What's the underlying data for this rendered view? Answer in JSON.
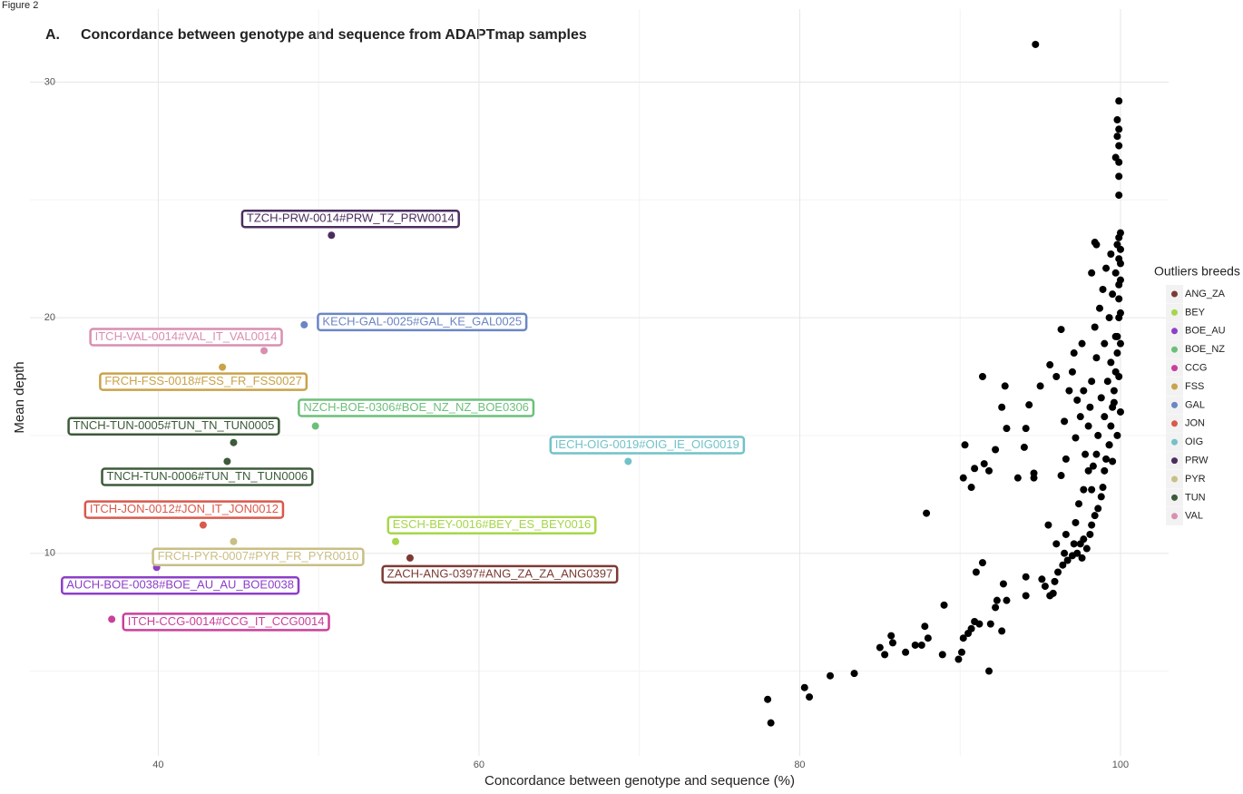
{
  "figure_label": "Figure 2",
  "chart_data": {
    "type": "scatter",
    "panel": "A.",
    "title": "Concordance between genotype and sequence from ADAPTmap samples",
    "xlabel": "Concordance between genotype and sequence (%)",
    "ylabel": "Mean depth",
    "legend_title": "Outliers breeds",
    "legend": "right",
    "grid": true,
    "xlim": [
      32,
      103
    ],
    "ylim": [
      1.4,
      33.1
    ],
    "xticks": [
      40,
      60,
      80,
      100
    ],
    "yticks": [
      10,
      20,
      30
    ],
    "minor_xticks": [
      50,
      70,
      90
    ],
    "minor_yticks": [
      5,
      15,
      25
    ],
    "color": "#000000",
    "x": [
      94.7,
      99.9,
      99.8,
      99.9,
      99.9,
      99.8,
      99.7,
      99.9,
      99.9,
      99.9,
      100.0,
      99.9,
      98.4,
      98.5,
      78.0,
      78.2,
      80.3,
      80.6,
      81.9,
      83.4,
      85.0,
      85.3,
      85.7,
      85.8,
      86.6,
      87.2,
      87.6,
      87.8,
      88.0,
      88.9,
      89.0,
      89.9,
      90.1,
      90.2,
      90.5,
      90.7,
      90.9,
      91.2,
      91.8,
      91.9,
      92.2,
      92.3,
      92.6,
      92.7,
      92.9,
      91.0,
      91.4,
      94.1,
      94.1,
      95.1,
      95.3,
      95.6,
      95.8,
      95.9,
      96.1,
      96.4,
      96.7,
      97.0,
      97.3,
      97.5,
      97.7,
      97.9,
      98.1,
      98.2,
      98.4,
      98.6,
      98.8,
      98.9,
      99.0,
      99.1,
      99.3,
      99.4,
      99.5,
      99.6,
      99.7,
      99.8,
      99.8,
      99.9,
      99.9,
      100.0,
      100.0,
      100.0,
      87.9,
      90.3,
      90.2,
      90.7,
      90.9,
      91.5,
      91.8,
      91.4,
      92.2,
      92.6,
      92.8,
      92.9,
      93.6,
      94.0,
      94.1,
      94.3,
      94.6,
      94.6,
      95.0,
      95.6,
      96.0,
      96.3,
      96.3,
      96.5,
      96.6,
      96.8,
      97.0,
      97.1,
      97.2,
      97.3,
      97.5,
      97.6,
      97.7,
      97.8,
      98.0,
      98.1,
      98.2,
      98.2,
      98.4,
      98.5,
      98.6,
      98.7,
      98.8,
      98.9,
      99.0,
      99.0,
      99.1,
      99.2,
      99.3,
      99.3,
      99.4,
      99.4,
      99.5,
      99.5,
      99.6,
      99.7,
      99.7,
      99.8,
      99.8,
      99.9,
      99.9,
      99.9,
      100.0,
      100.0,
      100.0,
      95.5,
      96.0,
      96.6,
      97.2,
      97.4,
      97.7,
      98.0,
      98.3,
      97.1,
      97.6,
      96.5,
      98.2,
      98.5
    ],
    "values": [
      31.6,
      29.2,
      28.4,
      28.0,
      27.3,
      27.7,
      26.8,
      26.6,
      26.0,
      25.2,
      23.6,
      23.4,
      23.2,
      23.1,
      3.8,
      2.8,
      4.3,
      3.9,
      4.8,
      4.9,
      6.0,
      5.7,
      6.5,
      6.2,
      5.8,
      6.1,
      6.1,
      6.9,
      6.4,
      5.7,
      7.8,
      5.5,
      5.8,
      6.4,
      6.6,
      6.8,
      7.1,
      7.0,
      5.0,
      7.0,
      7.7,
      8.0,
      6.7,
      8.7,
      8.0,
      9.2,
      9.6,
      9.0,
      8.2,
      8.9,
      8.6,
      8.2,
      8.3,
      8.8,
      9.2,
      9.5,
      9.7,
      9.9,
      10.0,
      10.4,
      10.6,
      10.2,
      10.8,
      11.2,
      11.6,
      11.9,
      12.4,
      12.8,
      13.5,
      14.0,
      14.6,
      15.4,
      16.2,
      16.9,
      17.7,
      18.5,
      19.2,
      20.0,
      20.8,
      21.6,
      22.3,
      22.9,
      11.7,
      14.6,
      13.2,
      12.8,
      13.6,
      13.8,
      13.5,
      17.5,
      14.4,
      16.2,
      17.1,
      15.3,
      13.2,
      14.5,
      15.3,
      16.3,
      13.4,
      13.2,
      17.1,
      18.0,
      17.5,
      19.5,
      13.3,
      15.6,
      14.0,
      16.9,
      17.7,
      18.5,
      14.9,
      16.5,
      15.8,
      18.9,
      16.9,
      14.2,
      15.4,
      16.2,
      21.9,
      17.3,
      19.6,
      18.3,
      15.0,
      20.4,
      16.6,
      21.2,
      18.9,
      15.8,
      22.1,
      17.3,
      20.0,
      14.6,
      22.7,
      18.1,
      13.9,
      21.0,
      16.4,
      21.9,
      19.2,
      23.1,
      15.0,
      22.5,
      21.4,
      17.5,
      20.2,
      16.0,
      18.9,
      11.2,
      10.4,
      10.8,
      11.3,
      12.1,
      12.7,
      13.5,
      13.7,
      10.4,
      9.8,
      10.0,
      12.7,
      14.2
    ],
    "series": [
      {
        "name": "ANG_ZA",
        "color": "#7d3a34",
        "x": [
          55.7
        ],
        "values": [
          9.8
        ],
        "labels": [
          "ZACH-ANG-0397#ANG_ZA_ZA_ANG0397"
        ]
      },
      {
        "name": "BEY",
        "color": "#a6d64a",
        "x": [
          54.8
        ],
        "values": [
          10.5
        ],
        "labels": [
          "ESCH-BEY-0016#BEY_ES_BEY0016"
        ]
      },
      {
        "name": "BOE_AU",
        "color": "#8c3fc9",
        "x": [
          39.9
        ],
        "values": [
          9.4
        ],
        "labels": [
          "AUCH-BOE-0038#BOE_AU_AU_BOE0038"
        ]
      },
      {
        "name": "BOE_NZ",
        "color": "#6cbf7a",
        "x": [
          49.8
        ],
        "values": [
          15.4
        ],
        "labels": [
          "NZCH-BOE-0306#BOE_NZ_NZ_BOE0306"
        ]
      },
      {
        "name": "CCG",
        "color": "#c9409b",
        "x": [
          37.1
        ],
        "values": [
          7.2
        ],
        "labels": [
          "ITCH-CCG-0014#CCG_IT_CCG0014"
        ]
      },
      {
        "name": "FSS",
        "color": "#c9a24a",
        "x": [
          44.0
        ],
        "values": [
          17.9
        ],
        "labels": [
          "FRCH-FSS-0018#FSS_FR_FSS0027"
        ]
      },
      {
        "name": "GAL",
        "color": "#6b86c4",
        "x": [
          49.1
        ],
        "values": [
          19.7
        ],
        "labels": [
          "KECH-GAL-0025#GAL_KE_GAL0025"
        ]
      },
      {
        "name": "JON",
        "color": "#d9594c",
        "x": [
          42.8
        ],
        "values": [
          11.2
        ],
        "labels": [
          "ITCH-JON-0012#JON_IT_JON0012"
        ]
      },
      {
        "name": "OIG",
        "color": "#72c2c8",
        "x": [
          69.3
        ],
        "values": [
          13.9
        ],
        "labels": [
          "IECH-OIG-0019#OIG_IE_OIG0019"
        ]
      },
      {
        "name": "PRW",
        "color": "#4b2e5f",
        "x": [
          50.8
        ],
        "values": [
          23.5
        ],
        "labels": [
          "TZCH-PRW-0014#PRW_TZ_PRW0014"
        ]
      },
      {
        "name": "PYR",
        "color": "#c9be84",
        "x": [
          44.7
        ],
        "values": [
          10.5
        ],
        "labels": [
          "FRCH-PYR-0007#PYR_FR_PYR0010"
        ]
      },
      {
        "name": "TUN",
        "color": "#3d5a3a",
        "x": [
          44.7,
          44.3
        ],
        "values": [
          14.7,
          13.9
        ],
        "labels": [
          "TNCH-TUN-0005#TUN_TN_TUN0005",
          "TNCH-TUN-0006#TUN_TN_TUN0006"
        ]
      },
      {
        "name": "VAL",
        "color": "#d98fb0",
        "x": [
          46.6
        ],
        "values": [
          18.6
        ],
        "labels": [
          "ITCH-VAL-0014#VAL_IT_VAL0014"
        ]
      }
    ]
  }
}
